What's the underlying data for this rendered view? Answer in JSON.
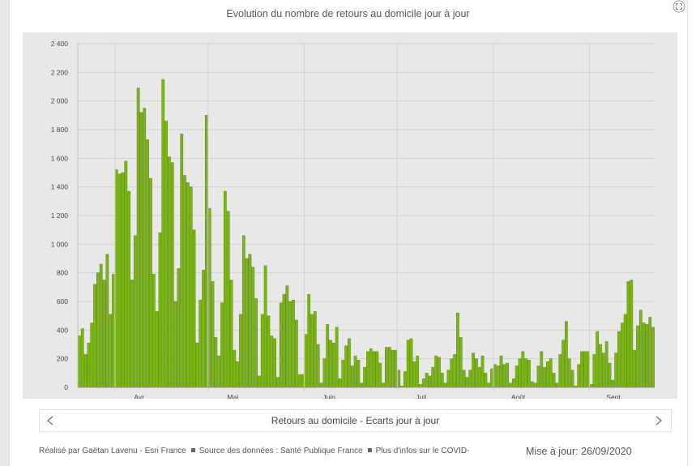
{
  "title": "Evolution du nombre de retours au domicile jour à jour",
  "nav": {
    "label": "Retours au domicile - Ecarts jour à jour"
  },
  "footer": {
    "author": "Réalisé par Gaëtan Lavenu - Esri France",
    "source": "Source des données : Santé Publique France",
    "more": "Plus d'infos sur le COVID-"
  },
  "update": "Mise à jour: 26/09/2020",
  "colors": {
    "bar": "#7cb518",
    "bar_edge": "#5a8a0c",
    "grid": "#d0d0d0",
    "plot_bg": "#e8e8e8"
  },
  "chart_data": {
    "type": "bar",
    "title": "Evolution du nombre de retours au domicile jour à jour",
    "xlabel": "",
    "ylabel": "",
    "ylim": [
      0,
      2400
    ],
    "y_ticks": [
      "0",
      "200",
      "400",
      "600",
      "800",
      "1 000",
      "1 200",
      "1 400",
      "1 600",
      "1 800",
      "2 000",
      "2 200",
      "2 400"
    ],
    "x_ticks": [
      "Avr.",
      "Mai",
      "Juin",
      "Juil.",
      "Août",
      "Sept."
    ],
    "x_start": "2020-03-20",
    "grid": true,
    "values": [
      360,
      410,
      230,
      310,
      450,
      720,
      800,
      860,
      750,
      930,
      510,
      790,
      1520,
      1490,
      1500,
      1580,
      1370,
      750,
      1060,
      2090,
      1920,
      1950,
      1730,
      1460,
      790,
      530,
      1080,
      2150,
      1860,
      1610,
      1570,
      600,
      830,
      1770,
      1480,
      1430,
      1400,
      1100,
      310,
      610,
      820,
      1900,
      1250,
      740,
      350,
      220,
      590,
      1370,
      1230,
      750,
      260,
      180,
      510,
      1060,
      900,
      930,
      840,
      620,
      80,
      510,
      850,
      500,
      360,
      340,
      70,
      590,
      650,
      710,
      600,
      610,
      470,
      90,
      90,
      370,
      650,
      510,
      530,
      300,
      30,
      200,
      440,
      330,
      310,
      420,
      60,
      190,
      290,
      340,
      150,
      220,
      190,
      30,
      140,
      250,
      270,
      250,
      250,
      170,
      30,
      280,
      280,
      260,
      260,
      120,
      10,
      110,
      330,
      340,
      180,
      220,
      20,
      60,
      100,
      80,
      140,
      220,
      210,
      100,
      30,
      120,
      200,
      230,
      520,
      350,
      120,
      70,
      120,
      240,
      200,
      140,
      220,
      100,
      30,
      130,
      160,
      150,
      220,
      160,
      170,
      30,
      60,
      150,
      200,
      250,
      200,
      190,
      40,
      30,
      150,
      250,
      140,
      180,
      200,
      100,
      30,
      230,
      330,
      460,
      200,
      120,
      10,
      160,
      250,
      250,
      250,
      20,
      230,
      390,
      300,
      240,
      320,
      170,
      50,
      240,
      390,
      450,
      510,
      740,
      750,
      260,
      430,
      540,
      450,
      440,
      490,
      420
    ]
  }
}
